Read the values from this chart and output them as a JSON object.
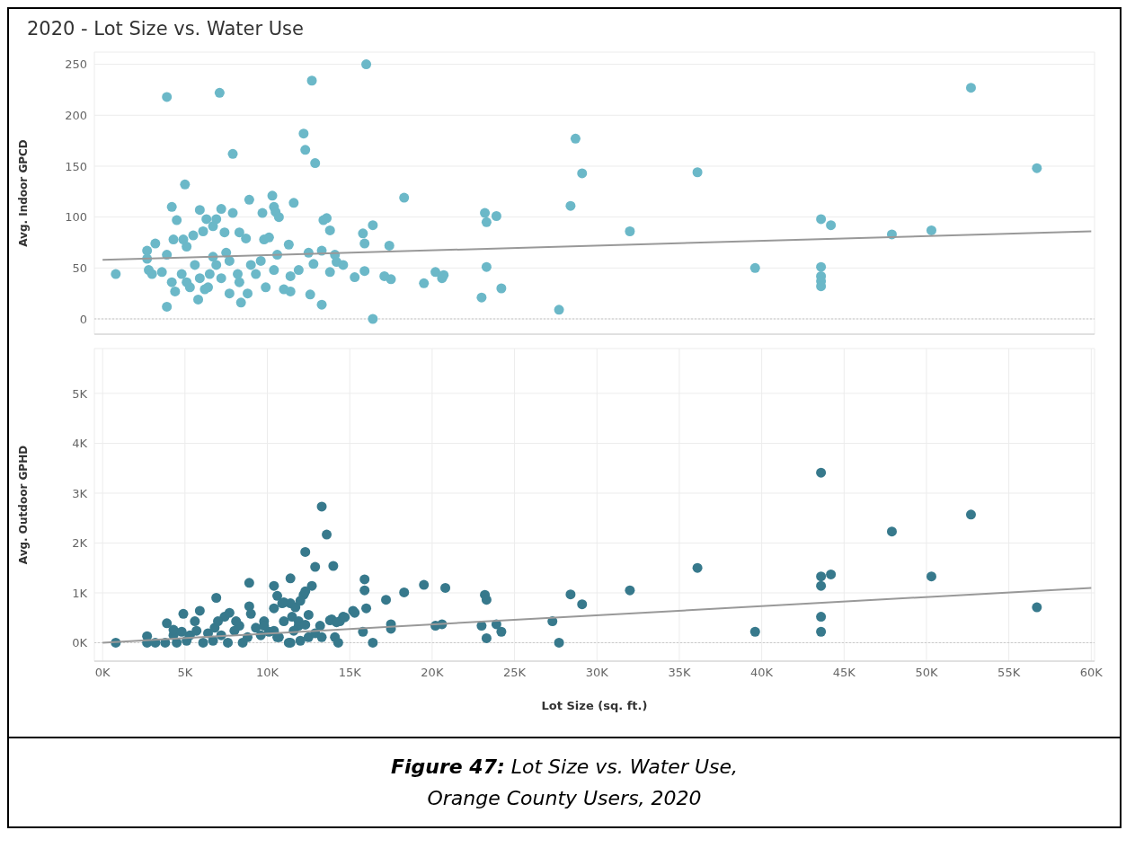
{
  "chart_data": [
    {
      "type": "scatter",
      "title": "2020 - Lot Size vs. Water Use",
      "ylabel": "Avg. Indoor GPCD",
      "xlim": [
        -500,
        60200
      ],
      "ylim": [
        -15,
        262
      ],
      "xticks": [
        {
          "value": 0,
          "label": null
        },
        {
          "value": 5000,
          "label": null
        },
        {
          "value": 10000,
          "label": null
        },
        {
          "value": 15000,
          "label": null
        },
        {
          "value": 20000,
          "label": null
        },
        {
          "value": 25000,
          "label": null
        },
        {
          "value": 30000,
          "label": null
        },
        {
          "value": 35000,
          "label": null
        },
        {
          "value": 40000,
          "label": null
        },
        {
          "value": 45000,
          "label": null
        },
        {
          "value": 50000,
          "label": null
        },
        {
          "value": 55000,
          "label": null
        },
        {
          "value": 60000,
          "label": null
        }
      ],
      "yticks": [
        0,
        50,
        100,
        150,
        200,
        250
      ],
      "tick_labels": "y",
      "grid": true,
      "marker": "circle",
      "ref_lines": [
        {
          "axis": "y",
          "value": 0,
          "color": "#c8c8c8",
          "line_style": "dotted"
        }
      ],
      "series": [
        {
          "type": "scatter",
          "color": "#6bb8c8",
          "x": [
            800,
            3900,
            7100,
            12700,
            16000,
            52700,
            56700,
            28700,
            29100,
            36100,
            28400,
            23200,
            23900,
            18300,
            32000,
            43600,
            44200,
            47900,
            50300,
            39600,
            43600,
            43600,
            43600,
            43600,
            27700,
            23300,
            23300,
            23000,
            24200,
            19500,
            20200,
            20600,
            20700,
            16400,
            16400,
            15800,
            15900,
            15900,
            17400,
            17100,
            17500,
            15300,
            12200,
            12300,
            12900,
            7900,
            5000,
            4200,
            5900,
            7200,
            7900,
            8900,
            10300,
            11600,
            10400,
            9700,
            10500,
            10700,
            13600,
            13400,
            13800,
            6300,
            6900,
            4500,
            7400,
            8300,
            8700,
            3200,
            2700,
            2700,
            2800,
            3900,
            4300,
            4900,
            5100,
            5500,
            6100,
            6700,
            9800,
            10100,
            11300,
            12500,
            13300,
            14100,
            14200,
            14600,
            12800,
            10600,
            3600,
            4200,
            4400,
            3900,
            5300,
            6400,
            5800,
            7700,
            8400,
            8800,
            9900,
            11000,
            11400,
            12600,
            13300,
            13800,
            8300,
            7200,
            6500,
            5600,
            7700,
            9000,
            7500,
            6700,
            4800,
            5100,
            5900,
            9300,
            10400,
            11400,
            11900,
            3000,
            6900,
            8200,
            6200,
            9600
          ],
          "values": [
            44,
            218,
            222,
            234,
            250,
            227,
            148,
            177,
            143,
            144,
            111,
            104,
            101,
            119,
            86,
            98,
            92,
            83,
            87,
            50,
            51,
            42,
            37,
            32,
            9,
            95,
            51,
            21,
            30,
            35,
            46,
            40,
            43,
            0,
            92,
            84,
            74,
            47,
            72,
            42,
            39,
            41,
            182,
            166,
            153,
            162,
            132,
            110,
            107,
            108,
            104,
            117,
            121,
            114,
            110,
            104,
            105,
            100,
            99,
            97,
            87,
            98,
            98,
            97,
            85,
            85,
            79,
            74,
            67,
            59,
            48,
            63,
            78,
            78,
            71,
            82,
            86,
            91,
            78,
            80,
            73,
            65,
            67,
            63,
            56,
            53,
            54,
            63,
            46,
            36,
            27,
            12,
            31,
            31,
            19,
            25,
            16,
            25,
            31,
            29,
            27,
            24,
            14,
            46,
            36,
            40,
            44,
            53,
            57,
            53,
            65,
            61,
            44,
            36,
            40,
            44,
            48,
            42,
            48,
            44,
            53,
            44,
            29,
            57
          ]
        },
        {
          "type": "line",
          "color": "#999999",
          "marker": "none",
          "x": [
            0,
            60000
          ],
          "values": [
            58,
            86
          ]
        }
      ]
    },
    {
      "type": "scatter",
      "xlabel": "Lot Size (sq. ft.)",
      "ylabel": "Avg. Outdoor GPHD",
      "xlim": [
        -500,
        60200
      ],
      "ylim": [
        -370,
        5900
      ],
      "xticks": [
        {
          "value": 0,
          "label": "0K"
        },
        {
          "value": 5000,
          "label": "5K"
        },
        {
          "value": 10000,
          "label": "10K"
        },
        {
          "value": 15000,
          "label": "15K"
        },
        {
          "value": 20000,
          "label": "20K"
        },
        {
          "value": 25000,
          "label": "25K"
        },
        {
          "value": 30000,
          "label": "30K"
        },
        {
          "value": 35000,
          "label": "35K"
        },
        {
          "value": 40000,
          "label": "40K"
        },
        {
          "value": 45000,
          "label": "45K"
        },
        {
          "value": 50000,
          "label": "50K"
        },
        {
          "value": 55000,
          "label": "55K"
        },
        {
          "value": 60000,
          "label": "60K"
        }
      ],
      "yticks": [
        {
          "value": 0,
          "label": "0K"
        },
        {
          "value": 1000,
          "label": "1K"
        },
        {
          "value": 2000,
          "label": "2K"
        },
        {
          "value": 3000,
          "label": "3K"
        },
        {
          "value": 4000,
          "label": "4K"
        },
        {
          "value": 5000,
          "label": "5K"
        }
      ],
      "grid": true,
      "marker": "circle",
      "ref_lines": [
        {
          "axis": "y",
          "value": 0,
          "color": "#c8c8c8",
          "line_style": "dotted"
        }
      ],
      "annotations": [
        "Figure 47: Lot Size vs. Water Use,",
        "Orange County Users,  2020"
      ],
      "series": [
        {
          "type": "scatter",
          "color": "#37798c",
          "x": [
            800,
            13300,
            13600,
            12300,
            12900,
            14000,
            11400,
            12700,
            8900,
            10400,
            10600,
            11400,
            12200,
            3900,
            4900,
            6900,
            5900,
            8900,
            10400,
            11000,
            15900,
            15900,
            15800,
            16400,
            15200,
            14600,
            13900,
            14400,
            17200,
            17500,
            17500,
            18300,
            19500,
            20800,
            20200,
            20600,
            23200,
            23300,
            23000,
            23900,
            24200,
            23300,
            27300,
            27700,
            28400,
            29100,
            32000,
            36100,
            39600,
            43600,
            43600,
            43600,
            43600,
            43600,
            44200,
            47900,
            50300,
            52700,
            56700,
            2700,
            2700,
            3200,
            3800,
            4300,
            4500,
            5100,
            5300,
            5700,
            6100,
            6400,
            6800,
            7200,
            7600,
            8000,
            8300,
            8800,
            9300,
            9800,
            10100,
            10600,
            11000,
            11500,
            11900,
            12500,
            12900,
            13300,
            11400,
            8500,
            5600,
            7400,
            6700,
            9000,
            9800,
            10400,
            11700,
            12500,
            11900,
            4300,
            4800,
            8100,
            9600,
            7000,
            7700,
            14100,
            14300,
            11300,
            12000,
            16000,
            14700,
            15300,
            13800,
            14200,
            13200,
            12300,
            12300,
            10900,
            12000,
            11600,
            10700
          ],
          "values": [
            0,
            2730,
            2170,
            1820,
            1520,
            1540,
            1290,
            1140,
            1200,
            1140,
            940,
            790,
            960,
            390,
            580,
            900,
            640,
            730,
            690,
            810,
            1270,
            1050,
            220,
            0,
            640,
            520,
            470,
            430,
            860,
            370,
            280,
            1010,
            1160,
            1100,
            340,
            370,
            960,
            860,
            340,
            370,
            220,
            90,
            430,
            0,
            970,
            770,
            1050,
            1500,
            220,
            3410,
            1330,
            1140,
            520,
            220,
            1370,
            2230,
            1330,
            2570,
            710,
            130,
            0,
            0,
            0,
            150,
            0,
            40,
            150,
            240,
            0,
            190,
            300,
            150,
            0,
            240,
            340,
            110,
            300,
            430,
            220,
            110,
            430,
            520,
            340,
            110,
            190,
            110,
            0,
            0,
            430,
            520,
            40,
            580,
            340,
            240,
            710,
            560,
            430,
            260,
            220,
            430,
            150,
            430,
            600,
            110,
            0,
            0,
            40,
            690,
            510,
            600,
            450,
            410,
            340,
            360,
            1030,
            790,
            840,
            240,
            110
          ]
        },
        {
          "type": "line",
          "color": "#999999",
          "marker": "none",
          "x": [
            0,
            60000
          ],
          "values": [
            0,
            1100
          ]
        }
      ]
    }
  ]
}
